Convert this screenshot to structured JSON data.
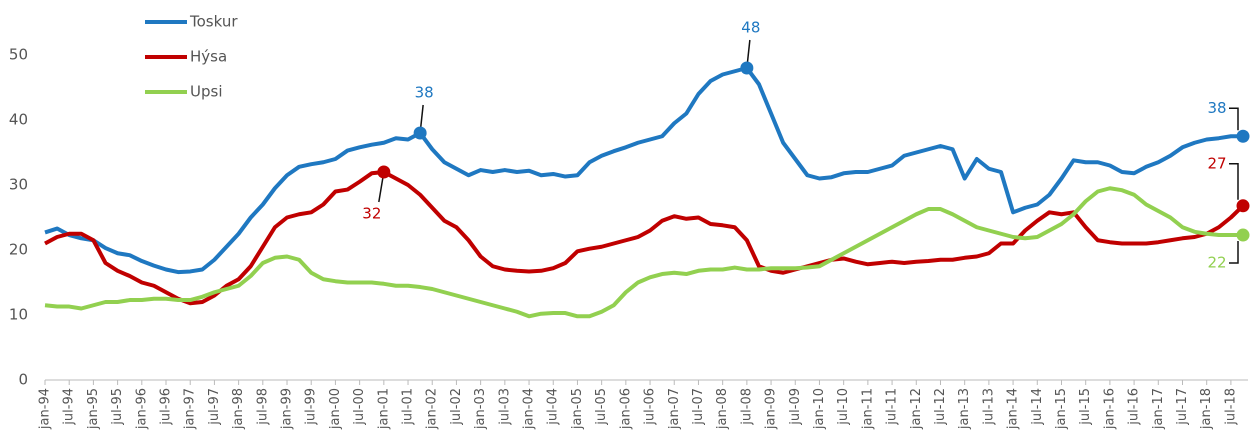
{
  "chart_data": {
    "type": "line",
    "categories": [
      "jan-94",
      null,
      "jul-94",
      null,
      "jan-95",
      null,
      "jul-95",
      null,
      "jan-96",
      null,
      "jul-96",
      null,
      "jan-97",
      null,
      "jul-97",
      null,
      "jan-98",
      null,
      "jul-98",
      null,
      "jan-99",
      null,
      "jul-99",
      null,
      "jan-00",
      null,
      "jul-00",
      null,
      "jan-01",
      null,
      "jul-01",
      null,
      "jan-02",
      null,
      "jul-02",
      null,
      "jan-03",
      null,
      "jul-03",
      null,
      "jan-04",
      null,
      "jul-04",
      null,
      "jan-05",
      null,
      "jul-05",
      null,
      "jan-06",
      null,
      "jul-06",
      null,
      "jan-07",
      null,
      "jul-07",
      null,
      "jan-08",
      null,
      "jul-08",
      null,
      "jan-09",
      null,
      "jul-09",
      null,
      "jan-10",
      null,
      "jul-10",
      null,
      "jan-11",
      null,
      "jul-11",
      null,
      "jan-12",
      null,
      "jul-12",
      null,
      "jan-13",
      null,
      "jul-13",
      null,
      "jan-14",
      null,
      "jul-14",
      null,
      "jan-15",
      null,
      "jul-15",
      null,
      "jan-16",
      null,
      "jul-16",
      null,
      "jan-17",
      null,
      "jul-17",
      null,
      "jan-18",
      null,
      "jul-18",
      null
    ],
    "series": [
      {
        "name": "Toskur",
        "color": "#1f78c1",
        "values": [
          22.7,
          23.3,
          22.3,
          21.8,
          21.5,
          20.3,
          19.5,
          19.2,
          18.3,
          17.6,
          17.0,
          16.6,
          16.7,
          17.0,
          18.5,
          20.5,
          22.5,
          25.0,
          27.0,
          29.5,
          31.5,
          32.8,
          33.2,
          33.5,
          34.0,
          35.3,
          35.8,
          36.2,
          36.5,
          37.2,
          37.0,
          38.0,
          35.5,
          33.5,
          32.5,
          31.5,
          32.3,
          32.0,
          32.3,
          32.0,
          32.2,
          31.5,
          31.7,
          31.3,
          31.5,
          33.5,
          34.5,
          35.2,
          35.8,
          36.5,
          37.0,
          37.5,
          39.5,
          41.0,
          44.0,
          46.0,
          47.0,
          47.5,
          48.0,
          45.5,
          41.0,
          36.5,
          34.0,
          31.5,
          31.0,
          31.2,
          31.8,
          32.0,
          32.0,
          32.5,
          33.0,
          34.5,
          35.0,
          35.5,
          36.0,
          35.5,
          31.0,
          34.0,
          32.5,
          32.0,
          25.8,
          26.5,
          27.0,
          28.5,
          31.0,
          33.8,
          33.5,
          33.5,
          33.0,
          32.0,
          31.8,
          32.8,
          33.5,
          34.5,
          35.8,
          36.5,
          37.0,
          37.2,
          37.5,
          37.5
        ],
        "value_labels": [
          null,
          null,
          null,
          null,
          null,
          null,
          null,
          null,
          null,
          null,
          null,
          null,
          null,
          null,
          null,
          null,
          null,
          null,
          null,
          null,
          null,
          null,
          null,
          null,
          null,
          null,
          null,
          null,
          null,
          null,
          null,
          "38",
          null,
          null,
          null,
          null,
          null,
          null,
          null,
          null,
          null,
          null,
          null,
          null,
          null,
          null,
          null,
          null,
          null,
          null,
          null,
          null,
          null,
          null,
          null,
          null,
          null,
          null,
          "48",
          null,
          null,
          null,
          null,
          null,
          null,
          null,
          null,
          null,
          null,
          null,
          null,
          null,
          null,
          null,
          null,
          null,
          null,
          null,
          null,
          null,
          null,
          null,
          null,
          null,
          null,
          null,
          null,
          null,
          null,
          null,
          null,
          null,
          null,
          null,
          null,
          null,
          null,
          null,
          null,
          "38"
        ]
      },
      {
        "name": "Hýsa",
        "color": "#c00000",
        "values": [
          21.0,
          22.0,
          22.5,
          22.5,
          21.5,
          18.0,
          16.8,
          16.0,
          15.0,
          14.5,
          13.5,
          12.5,
          11.8,
          12.0,
          13.0,
          14.5,
          15.5,
          17.5,
          20.5,
          23.5,
          25.0,
          25.5,
          25.8,
          27.0,
          29.0,
          29.3,
          30.5,
          31.8,
          32.0,
          31.0,
          30.0,
          28.5,
          26.5,
          24.5,
          23.5,
          21.5,
          19.0,
          17.5,
          17.0,
          16.8,
          16.7,
          16.8,
          17.2,
          18.0,
          19.8,
          20.2,
          20.5,
          21.0,
          21.5,
          22.0,
          23.0,
          24.5,
          25.2,
          24.8,
          25.0,
          24.0,
          23.8,
          23.5,
          21.5,
          17.5,
          16.8,
          16.5,
          17.0,
          17.5,
          18.0,
          18.5,
          18.7,
          18.2,
          17.8,
          18.0,
          18.2,
          18.0,
          18.2,
          18.3,
          18.5,
          18.5,
          18.8,
          19.0,
          19.5,
          21.0,
          21.0,
          23.0,
          24.5,
          25.8,
          25.5,
          25.8,
          23.5,
          21.5,
          21.2,
          21.0,
          21.0,
          21.0,
          21.2,
          21.5,
          21.8,
          22.0,
          22.5,
          23.5,
          25.0,
          26.8
        ],
        "value_labels": [
          null,
          null,
          null,
          null,
          null,
          null,
          null,
          null,
          null,
          null,
          null,
          null,
          null,
          null,
          null,
          null,
          null,
          null,
          null,
          null,
          null,
          null,
          null,
          null,
          null,
          null,
          null,
          null,
          "32",
          null,
          null,
          null,
          null,
          null,
          null,
          null,
          null,
          null,
          null,
          null,
          null,
          null,
          null,
          null,
          null,
          null,
          null,
          null,
          null,
          null,
          null,
          null,
          null,
          null,
          null,
          null,
          null,
          null,
          null,
          null,
          null,
          null,
          null,
          null,
          null,
          null,
          null,
          null,
          null,
          null,
          null,
          null,
          null,
          null,
          null,
          null,
          null,
          null,
          null,
          null,
          null,
          null,
          null,
          null,
          null,
          null,
          null,
          null,
          null,
          null,
          null,
          null,
          null,
          null,
          null,
          null,
          null,
          null,
          null,
          "27"
        ]
      },
      {
        "name": "Upsi",
        "color": "#92d050",
        "values": [
          11.5,
          11.3,
          11.3,
          11.0,
          11.5,
          12.0,
          12.0,
          12.3,
          12.3,
          12.5,
          12.5,
          12.3,
          12.3,
          12.8,
          13.5,
          14.0,
          14.5,
          16.0,
          18.0,
          18.8,
          19.0,
          18.5,
          16.5,
          15.5,
          15.2,
          15.0,
          15.0,
          15.0,
          14.8,
          14.5,
          14.5,
          14.3,
          14.0,
          13.5,
          13.0,
          12.5,
          12.0,
          11.5,
          11.0,
          10.5,
          9.8,
          10.2,
          10.3,
          10.3,
          9.8,
          9.8,
          10.5,
          11.5,
          13.5,
          15.0,
          15.8,
          16.3,
          16.5,
          16.3,
          16.8,
          17.0,
          17.0,
          17.3,
          17.0,
          17.0,
          17.2,
          17.2,
          17.2,
          17.3,
          17.5,
          18.5,
          19.5,
          20.5,
          21.5,
          22.5,
          23.5,
          24.5,
          25.5,
          26.3,
          26.3,
          25.5,
          24.5,
          23.5,
          23.0,
          22.5,
          22.0,
          21.8,
          22.0,
          23.0,
          24.0,
          25.5,
          27.5,
          29.0,
          29.5,
          29.2,
          28.5,
          27.0,
          26.0,
          25.0,
          23.5,
          22.8,
          22.5,
          22.3,
          22.3,
          22.3
        ],
        "value_labels": [
          null,
          null,
          null,
          null,
          null,
          null,
          null,
          null,
          null,
          null,
          null,
          null,
          null,
          null,
          null,
          null,
          null,
          null,
          null,
          null,
          null,
          null,
          null,
          null,
          null,
          null,
          null,
          null,
          null,
          null,
          null,
          null,
          null,
          null,
          null,
          null,
          null,
          null,
          null,
          null,
          null,
          null,
          null,
          null,
          null,
          null,
          null,
          null,
          null,
          null,
          null,
          null,
          null,
          null,
          null,
          null,
          null,
          null,
          null,
          null,
          null,
          null,
          null,
          null,
          null,
          null,
          null,
          null,
          null,
          null,
          null,
          null,
          null,
          null,
          null,
          null,
          null,
          null,
          null,
          null,
          null,
          null,
          null,
          null,
          null,
          null,
          null,
          null,
          null,
          null,
          null,
          null,
          null,
          null,
          null,
          null,
          null,
          null,
          null,
          "22"
        ]
      }
    ],
    "ylim": [
      0,
      50
    ],
    "yticks": [
      0,
      10,
      20,
      30,
      40,
      50
    ],
    "legend": "top-left"
  }
}
